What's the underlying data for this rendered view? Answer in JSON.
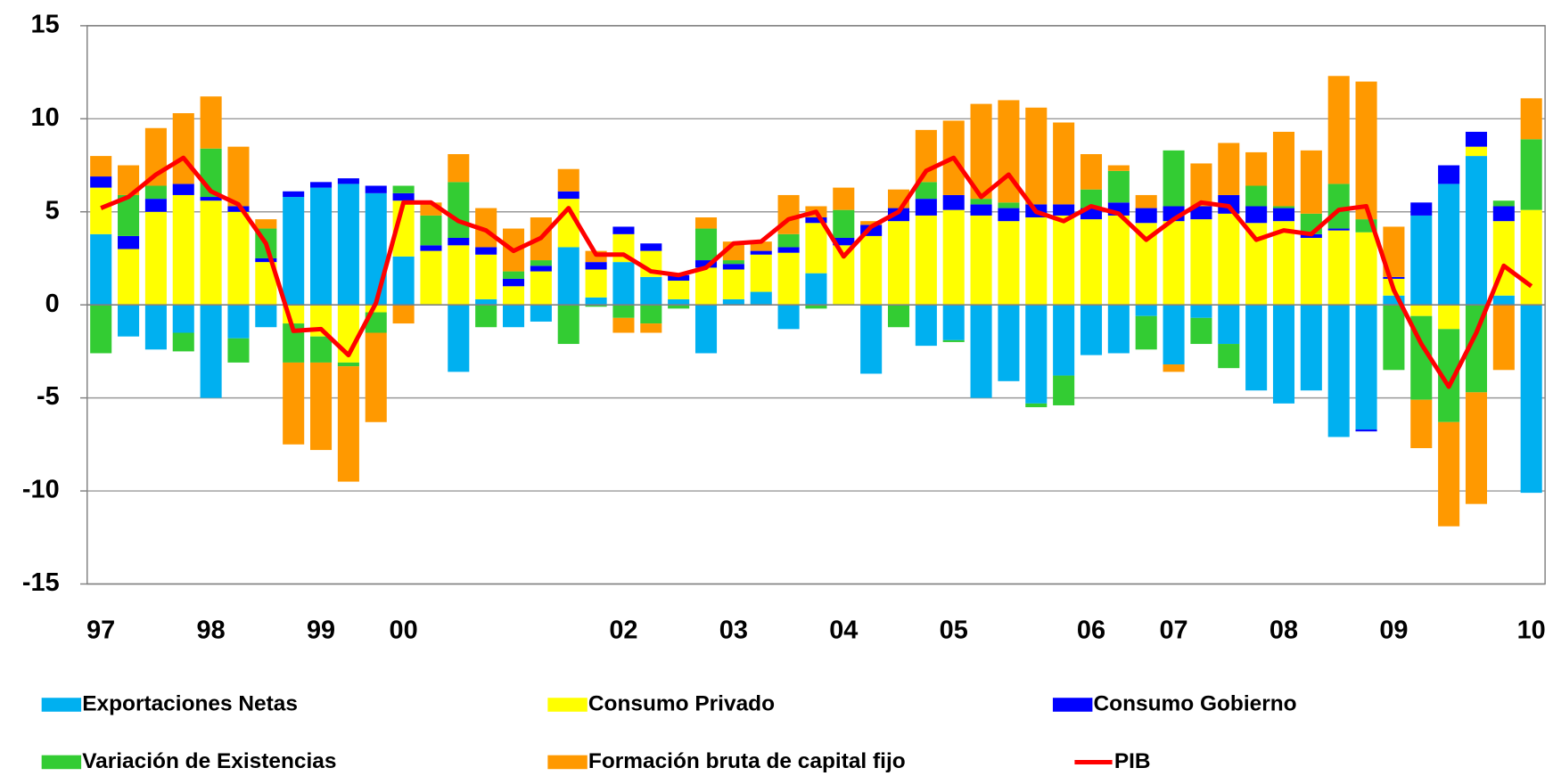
{
  "chart_data": {
    "type": "bar",
    "stacked": true,
    "categories": [
      "97",
      null,
      null,
      null,
      "98",
      null,
      null,
      null,
      "99",
      null,
      null,
      "00",
      null,
      null,
      null,
      null,
      null,
      null,
      null,
      "02",
      null,
      null,
      null,
      "03",
      null,
      null,
      null,
      "04",
      null,
      null,
      null,
      "05",
      null,
      null,
      null,
      null,
      "06",
      null,
      null,
      "07",
      null,
      null,
      null,
      "08",
      null,
      null,
      null,
      "09",
      null,
      null,
      null,
      null,
      "10"
    ],
    "series": [
      {
        "name": "Exportaciones Netas",
        "color": "#00b0f0",
        "values": [
          3.8,
          -1.7,
          -2.4,
          -1.5,
          -5.0,
          -1.8,
          -1.2,
          5.8,
          6.3,
          6.5,
          6.0,
          2.6,
          0.0,
          -3.6,
          0.3,
          -1.2,
          -0.9,
          3.1,
          0.4,
          2.3,
          1.5,
          0.3,
          -2.6,
          0.3,
          0.7,
          -1.3,
          1.7,
          0.0,
          -3.7,
          0.0,
          -2.2,
          -1.9,
          -5.0,
          -4.1,
          -5.3,
          -3.8,
          -2.7,
          -2.6,
          -0.6,
          -3.2,
          -0.7,
          -2.1,
          -4.6,
          -5.3,
          -4.6,
          -7.1,
          -6.7,
          0.5,
          4.8,
          6.5,
          8.0,
          0.5,
          -10.1
        ]
      },
      {
        "name": "Consumo Privado",
        "color": "#ffff00",
        "values": [
          2.5,
          3.0,
          5.0,
          5.9,
          5.6,
          5.0,
          2.3,
          -1.0,
          -1.7,
          -3.1,
          -0.4,
          3.0,
          2.9,
          3.2,
          2.4,
          1.0,
          1.8,
          2.6,
          1.5,
          1.5,
          1.4,
          1.0,
          2.0,
          1.6,
          2.0,
          2.8,
          2.7,
          3.2,
          3.7,
          4.5,
          4.8,
          5.1,
          4.8,
          4.5,
          4.7,
          4.8,
          4.6,
          4.8,
          4.4,
          4.5,
          4.6,
          4.9,
          4.4,
          4.5,
          3.6,
          4.0,
          3.9,
          0.9,
          -0.6,
          -1.3,
          0.5,
          4.0,
          5.1
        ]
      },
      {
        "name": "Consumo Gobierno",
        "color": "#0000ff",
        "values": [
          0.6,
          0.7,
          0.7,
          0.6,
          0.2,
          0.3,
          0.2,
          0.3,
          0.3,
          0.3,
          0.4,
          0.4,
          0.3,
          0.4,
          0.4,
          0.4,
          0.3,
          0.4,
          0.4,
          0.4,
          0.4,
          0.3,
          0.4,
          0.3,
          0.2,
          0.3,
          0.3,
          0.4,
          0.6,
          0.7,
          0.9,
          0.8,
          0.6,
          0.7,
          0.7,
          0.6,
          0.6,
          0.7,
          0.8,
          0.8,
          0.7,
          1.0,
          0.9,
          0.7,
          0.2,
          0.1,
          -0.1,
          0.1,
          0.7,
          1.0,
          0.8,
          0.8,
          0.0
        ]
      },
      {
        "name": "Variación de Existencias",
        "color": "#33cc33",
        "values": [
          -2.6,
          2.2,
          0.7,
          -1.0,
          2.6,
          -1.3,
          1.6,
          -2.1,
          -1.4,
          -0.2,
          -1.1,
          0.4,
          1.6,
          3.0,
          -1.2,
          0.4,
          0.3,
          -2.1,
          -0.1,
          -0.7,
          -1.0,
          -0.2,
          1.7,
          0.2,
          0.0,
          0.7,
          -0.2,
          1.5,
          0.0,
          -1.2,
          0.9,
          -0.1,
          0.3,
          0.3,
          -0.2,
          -1.6,
          1.0,
          1.7,
          -1.8,
          3.0,
          -1.4,
          -1.3,
          1.1,
          0.1,
          1.1,
          2.4,
          0.7,
          -3.5,
          -4.5,
          -5.0,
          -4.7,
          0.3,
          3.8
        ]
      },
      {
        "name": "Formación bruta de capital fijo",
        "color": "#ff9900",
        "values": [
          1.1,
          1.6,
          3.1,
          3.8,
          2.8,
          3.2,
          0.5,
          -4.4,
          -4.7,
          -6.2,
          -4.8,
          -1.0,
          0.7,
          1.5,
          2.1,
          2.3,
          2.3,
          1.2,
          0.6,
          -0.8,
          -0.5,
          0.0,
          0.6,
          1.0,
          0.5,
          2.1,
          0.6,
          1.2,
          0.2,
          1.0,
          2.8,
          4.0,
          5.1,
          5.5,
          5.2,
          4.4,
          1.9,
          0.3,
          0.7,
          -0.4,
          2.3,
          2.8,
          1.8,
          4.0,
          3.4,
          5.8,
          7.4,
          2.7,
          -2.6,
          -5.6,
          -6.0,
          -3.5,
          2.2
        ]
      },
      {
        "name": "PIB",
        "color": "#ff0000",
        "type": "line",
        "values": [
          5.2,
          5.8,
          7.0,
          7.9,
          6.1,
          5.4,
          3.3,
          -1.4,
          -1.3,
          -2.7,
          0.1,
          5.5,
          5.5,
          4.5,
          4.0,
          2.9,
          3.6,
          5.2,
          2.7,
          2.7,
          1.8,
          1.6,
          2.0,
          3.3,
          3.4,
          4.6,
          5.0,
          2.6,
          4.2,
          5.0,
          7.2,
          7.9,
          5.8,
          7.0,
          5.0,
          4.5,
          5.3,
          4.9,
          3.5,
          4.6,
          5.5,
          5.3,
          3.5,
          4.0,
          3.8,
          5.1,
          5.3,
          0.8,
          -2.1,
          -4.4,
          -1.5,
          2.1,
          1.0
        ]
      }
    ],
    "ylim": [
      -15,
      15
    ],
    "yticks": [
      -15,
      -10,
      -5,
      0,
      5,
      10,
      15
    ],
    "grid": true,
    "legend": "bottom"
  }
}
